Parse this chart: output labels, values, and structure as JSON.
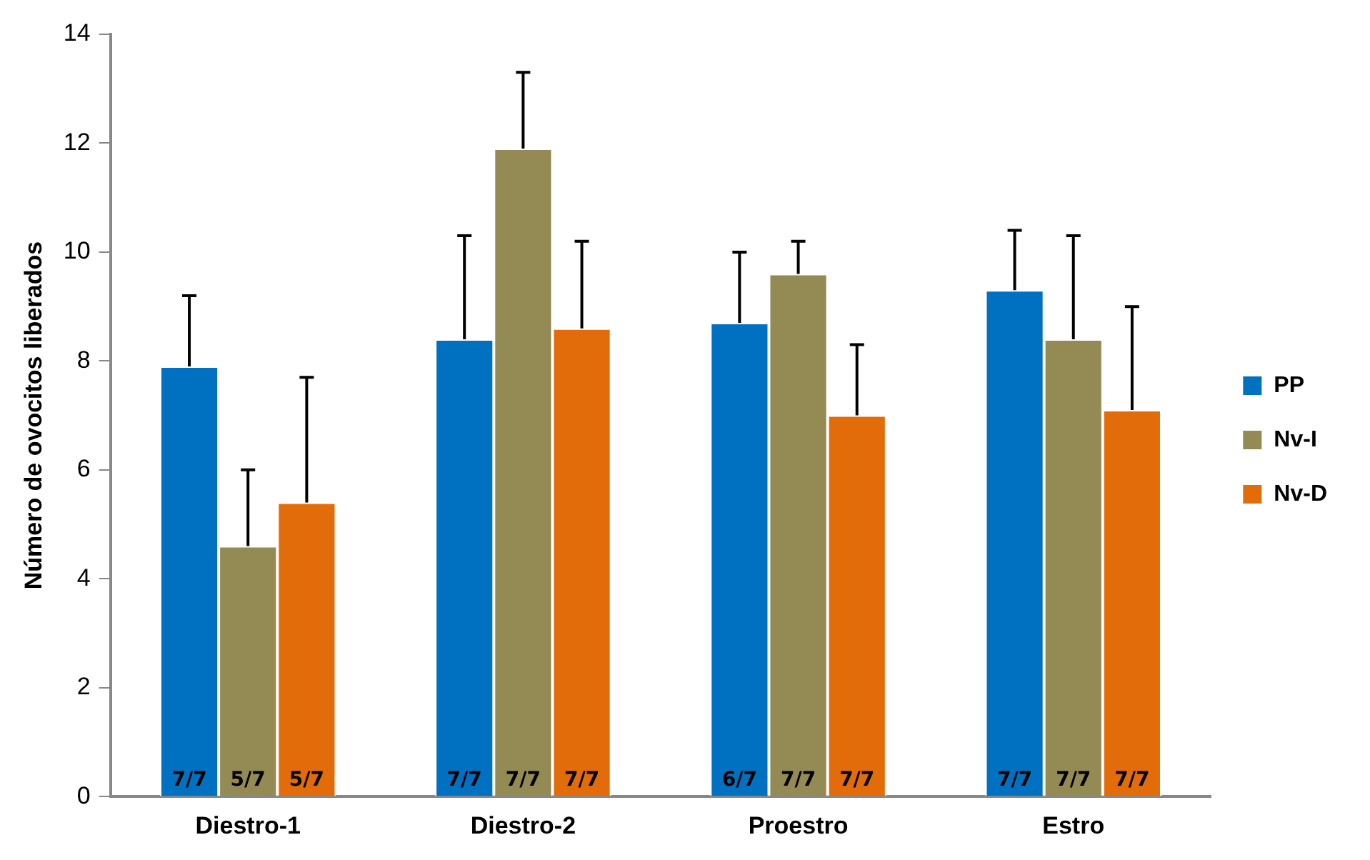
{
  "chart_data": {
    "type": "bar",
    "ylabel": "Número de ovocitos liberados",
    "categories": [
      "Diestro-1",
      "Diestro-2",
      "Proestro",
      "Estro"
    ],
    "series": [
      {
        "name": "PP",
        "color": "#0070c0",
        "values": [
          7.9,
          8.4,
          8.7,
          9.3
        ],
        "errors": [
          [
            7.9,
            9.2
          ],
          [
            8.4,
            10.3
          ],
          [
            8.7,
            10.0
          ],
          [
            9.3,
            10.4
          ]
        ],
        "value_labels": [
          "7/7",
          "7/7",
          "6/7",
          "7/7"
        ]
      },
      {
        "name": "Nv-I",
        "color": "#948a54",
        "values": [
          4.6,
          11.9,
          9.6,
          8.4
        ],
        "errors": [
          [
            4.6,
            6.0
          ],
          [
            11.9,
            13.3
          ],
          [
            9.6,
            10.2
          ],
          [
            8.4,
            10.3
          ]
        ],
        "value_labels": [
          "5/7",
          "7/7",
          "7/7",
          "7/7"
        ]
      },
      {
        "name": "Nv-D",
        "color": "#e36c0a",
        "values": [
          5.4,
          8.6,
          7.0,
          7.1
        ],
        "errors": [
          [
            5.4,
            7.7
          ],
          [
            8.6,
            10.2
          ],
          [
            7.0,
            8.3
          ],
          [
            7.1,
            9.0
          ]
        ],
        "value_labels": [
          "5/7",
          "7/7",
          "7/7",
          "7/7"
        ]
      }
    ],
    "ylim": [
      0,
      14
    ],
    "yticks": [
      0,
      2,
      4,
      6,
      8,
      10,
      12,
      14
    ],
    "grid": false,
    "legend": "right"
  }
}
